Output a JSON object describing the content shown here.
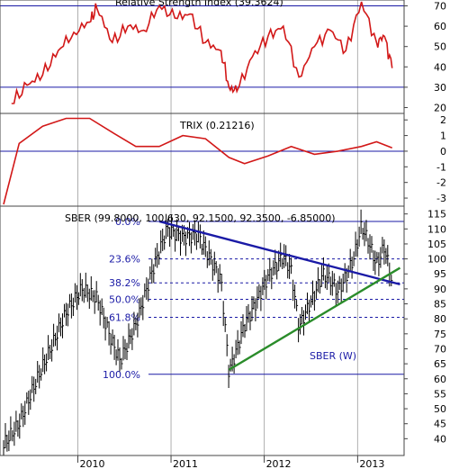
{
  "chart_data": [
    {
      "type": "line",
      "title": "Relative Strength Index (39.3624)",
      "ylim": [
        18,
        72
      ],
      "y_ticks": [
        "70",
        "60",
        "50",
        "40",
        "30",
        "20"
      ],
      "reference_lines": [
        70,
        30
      ],
      "colors": {
        "series": "#d21818",
        "reference": "#1a1aa6"
      },
      "series": [
        {
          "values": [
            {
              "date": "2009-04",
              "v": 22
            },
            {
              "date": "2009-06",
              "v": 31
            },
            {
              "date": "2009-08",
              "v": 36
            },
            {
              "date": "2009-10",
              "v": 48
            },
            {
              "date": "2009-12",
              "v": 57
            },
            {
              "date": "2010-02",
              "v": 62
            },
            {
              "date": "2010-03",
              "v": 69
            },
            {
              "date": "2010-05",
              "v": 52
            },
            {
              "date": "2010-07",
              "v": 60
            },
            {
              "date": "2010-09",
              "v": 58
            },
            {
              "date": "2010-11",
              "v": 70
            },
            {
              "date": "2011-01",
              "v": 64
            },
            {
              "date": "2011-03",
              "v": 66
            },
            {
              "date": "2011-05",
              "v": 52
            },
            {
              "date": "2011-07",
              "v": 48
            },
            {
              "date": "2011-08",
              "v": 30
            },
            {
              "date": "2011-09",
              "v": 28
            },
            {
              "date": "2011-11",
              "v": 45
            },
            {
              "date": "2012-01",
              "v": 55
            },
            {
              "date": "2012-03",
              "v": 60
            },
            {
              "date": "2012-05",
              "v": 35
            },
            {
              "date": "2012-07",
              "v": 50
            },
            {
              "date": "2012-09",
              "v": 58
            },
            {
              "date": "2012-11",
              "v": 48
            },
            {
              "date": "2013-01",
              "v": 72
            },
            {
              "date": "2013-03",
              "v": 52
            },
            {
              "date": "2013-04",
              "v": 55
            },
            {
              "date": "2013-05",
              "v": 39.4
            }
          ]
        }
      ]
    },
    {
      "type": "line",
      "title": "TRIX (0.21216)",
      "ylim": [
        -3.4,
        2.3
      ],
      "y_ticks": [
        "2",
        "1",
        "0",
        "-1",
        "-2",
        "-3"
      ],
      "reference_lines": [
        0
      ],
      "colors": {
        "series": "#d21818",
        "reference": "#1a1aa6"
      },
      "series": [
        {
          "values": [
            {
              "date": "2009-03",
              "v": -3.4
            },
            {
              "date": "2009-05",
              "v": 0.5
            },
            {
              "date": "2009-08",
              "v": 1.6
            },
            {
              "date": "2009-11",
              "v": 2.1
            },
            {
              "date": "2010-02",
              "v": 2.1
            },
            {
              "date": "2010-05",
              "v": 1.2
            },
            {
              "date": "2010-08",
              "v": 0.3
            },
            {
              "date": "2010-11",
              "v": 0.3
            },
            {
              "date": "2011-02",
              "v": 1.0
            },
            {
              "date": "2011-05",
              "v": 0.8
            },
            {
              "date": "2011-08",
              "v": -0.4
            },
            {
              "date": "2011-10",
              "v": -0.8
            },
            {
              "date": "2012-01",
              "v": -0.3
            },
            {
              "date": "2012-04",
              "v": 0.3
            },
            {
              "date": "2012-07",
              "v": -0.2
            },
            {
              "date": "2012-10",
              "v": 0.0
            },
            {
              "date": "2013-01",
              "v": 0.3
            },
            {
              "date": "2013-03",
              "v": 0.6
            },
            {
              "date": "2013-05",
              "v": 0.21
            }
          ]
        }
      ]
    },
    {
      "type": "bar",
      "title": "SBER (99.8000, 100.630, 92.1500, 92.3500, -6.85000)",
      "series_label": "SBER (W)",
      "ylim": [
        35,
        117
      ],
      "y_ticks": [
        "115",
        "110",
        "105",
        "100",
        "95",
        "90",
        "85",
        "80",
        "75",
        "70",
        "65",
        "60",
        "55",
        "50",
        "45",
        "40"
      ],
      "x_ticks": [
        "2010",
        "2011",
        "2012",
        "2013"
      ],
      "fibonacci_levels": [
        {
          "label": "0.0%",
          "value": 112.5
        },
        {
          "label": "23.6%",
          "value": 100.0
        },
        {
          "label": "38.2%",
          "value": 92.0
        },
        {
          "label": "50.0%",
          "value": 86.5
        },
        {
          "label": "61.8%",
          "value": 80.5
        },
        {
          "label": "100.0%",
          "value": 61.5
        }
      ],
      "trendlines": [
        {
          "name": "resistance",
          "color": "#1a1aa6",
          "start": {
            "date": "2010-11",
            "v": 112.5
          },
          "end": {
            "date": "2013-06",
            "v": 91.5
          }
        },
        {
          "name": "support",
          "color": "#2a8c2a",
          "start": {
            "date": "2011-08",
            "v": 63
          },
          "end": {
            "date": "2013-06",
            "v": 97
          }
        }
      ],
      "price_path": [
        {
          "date": "2009-03",
          "v": 38
        },
        {
          "date": "2009-05",
          "v": 45
        },
        {
          "date": "2009-07",
          "v": 58
        },
        {
          "date": "2009-09",
          "v": 70
        },
        {
          "date": "2009-11",
          "v": 82
        },
        {
          "date": "2010-01",
          "v": 90
        },
        {
          "date": "2010-03",
          "v": 87
        },
        {
          "date": "2010-05",
          "v": 72
        },
        {
          "date": "2010-06",
          "v": 66
        },
        {
          "date": "2010-08",
          "v": 78
        },
        {
          "date": "2010-10",
          "v": 95
        },
        {
          "date": "2010-12",
          "v": 110
        },
        {
          "date": "2011-02",
          "v": 107
        },
        {
          "date": "2011-04",
          "v": 108
        },
        {
          "date": "2011-06",
          "v": 98
        },
        {
          "date": "2011-07",
          "v": 93
        },
        {
          "date": "2011-08",
          "v": 62
        },
        {
          "date": "2011-09",
          "v": 70
        },
        {
          "date": "2011-10",
          "v": 78
        },
        {
          "date": "2011-11",
          "v": 83
        },
        {
          "date": "2012-01",
          "v": 94
        },
        {
          "date": "2012-03",
          "v": 101
        },
        {
          "date": "2012-04",
          "v": 96
        },
        {
          "date": "2012-05",
          "v": 77
        },
        {
          "date": "2012-06",
          "v": 83
        },
        {
          "date": "2012-07",
          "v": 88
        },
        {
          "date": "2012-08",
          "v": 95
        },
        {
          "date": "2012-09",
          "v": 93
        },
        {
          "date": "2012-10",
          "v": 89
        },
        {
          "date": "2012-11",
          "v": 94
        },
        {
          "date": "2012-12",
          "v": 100
        },
        {
          "date": "2013-01",
          "v": 111
        },
        {
          "date": "2013-02",
          "v": 105
        },
        {
          "date": "2013-03",
          "v": 98
        },
        {
          "date": "2013-04",
          "v": 104
        },
        {
          "date": "2013-05",
          "v": 92.35
        }
      ]
    }
  ]
}
